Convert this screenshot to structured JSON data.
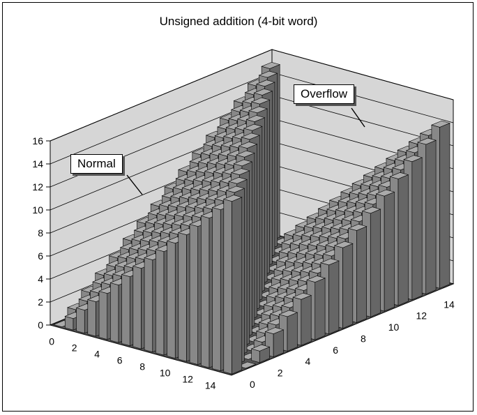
{
  "chart_data": {
    "type": "3d-bar",
    "title": "Unsigned addition (4-bit word)",
    "x_ticks": [
      0,
      2,
      4,
      6,
      8,
      10,
      12,
      14
    ],
    "y_ticks": [
      0,
      2,
      4,
      6,
      8,
      10,
      12,
      14
    ],
    "z_ticks": [
      0,
      2,
      4,
      6,
      8,
      10,
      12,
      14,
      16
    ],
    "zlim": [
      0,
      16
    ],
    "value_rule": "x + y",
    "x_range": [
      0,
      15
    ],
    "y_range": [
      0,
      15
    ],
    "annotations": [
      {
        "label": "Normal",
        "region": "x + y < 16"
      },
      {
        "label": "Overflow",
        "region": "x + y >= 16"
      }
    ],
    "colors": {
      "floor": "#555555",
      "wall": "#d6d6d6",
      "bar_left": "#888888",
      "bar_right": "#666666",
      "bar_top": "#aaaaaa"
    }
  }
}
